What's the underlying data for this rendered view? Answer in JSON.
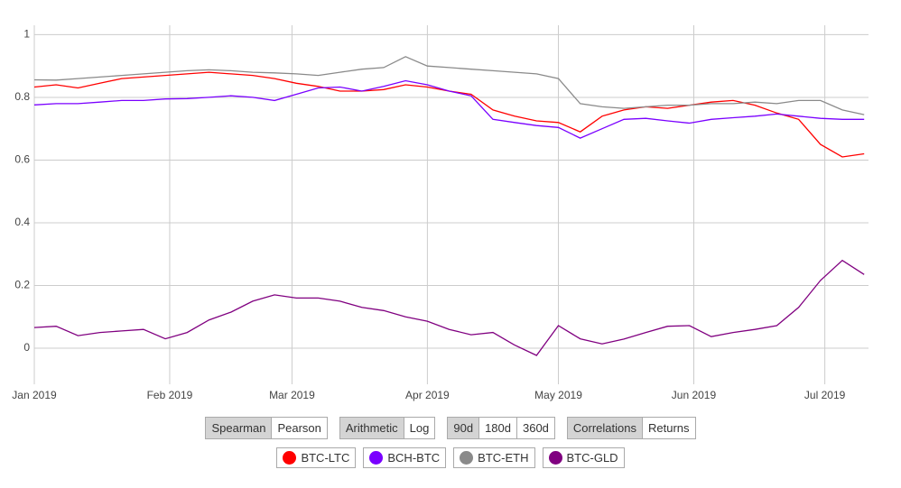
{
  "chart_data": {
    "type": "line",
    "x": [
      0,
      5,
      10,
      15,
      20,
      25,
      30,
      35,
      40,
      45,
      50,
      55,
      60,
      65,
      70,
      75,
      80,
      85,
      90,
      95,
      100,
      105,
      110,
      115,
      120,
      125,
      130,
      135,
      140,
      145,
      150,
      155,
      160,
      165,
      170,
      175,
      180,
      185,
      190
    ],
    "xlim": [
      0,
      191
    ],
    "xticks": [
      {
        "value": 0,
        "label": "Jan 2019"
      },
      {
        "value": 31,
        "label": "Feb 2019"
      },
      {
        "value": 59,
        "label": "Mar 2019"
      },
      {
        "value": 90,
        "label": "Apr 2019"
      },
      {
        "value": 120,
        "label": "May 2019"
      },
      {
        "value": 151,
        "label": "Jun 2019"
      },
      {
        "value": 181,
        "label": "Jul 2019"
      }
    ],
    "ylim": [
      -0.115,
      1.03
    ],
    "yticks": [
      0,
      0.2,
      0.4,
      0.6,
      0.8,
      1
    ],
    "grid": true,
    "series": [
      {
        "name": "BTC-LTC",
        "color": "#ff0000",
        "values": [
          0.833,
          0.84,
          0.83,
          0.845,
          0.86,
          0.865,
          0.87,
          0.875,
          0.88,
          0.875,
          0.87,
          0.86,
          0.845,
          0.835,
          0.82,
          0.82,
          0.825,
          0.84,
          0.833,
          0.82,
          0.81,
          0.76,
          0.74,
          0.725,
          0.72,
          0.69,
          0.74,
          0.76,
          0.77,
          0.765,
          0.775,
          0.785,
          0.79,
          0.775,
          0.75,
          0.73,
          0.65,
          0.61,
          0.62
        ]
      },
      {
        "name": "BCH-BTC",
        "color": "#7a00ff",
        "values": [
          0.776,
          0.78,
          0.78,
          0.785,
          0.79,
          0.79,
          0.795,
          0.796,
          0.8,
          0.805,
          0.8,
          0.79,
          0.81,
          0.83,
          0.833,
          0.82,
          0.835,
          0.853,
          0.84,
          0.82,
          0.805,
          0.73,
          0.72,
          0.71,
          0.704,
          0.67,
          0.7,
          0.73,
          0.733,
          0.725,
          0.718,
          0.73,
          0.735,
          0.74,
          0.747,
          0.74,
          0.733,
          0.73,
          0.73
        ]
      },
      {
        "name": "BTC-ETH",
        "color": "#8a8a8a",
        "values": [
          0.856,
          0.855,
          0.86,
          0.865,
          0.87,
          0.875,
          0.88,
          0.885,
          0.888,
          0.885,
          0.88,
          0.878,
          0.875,
          0.87,
          0.88,
          0.89,
          0.895,
          0.93,
          0.9,
          0.895,
          0.89,
          0.885,
          0.88,
          0.875,
          0.86,
          0.78,
          0.77,
          0.765,
          0.77,
          0.775,
          0.775,
          0.78,
          0.78,
          0.785,
          0.78,
          0.79,
          0.79,
          0.76,
          0.745
        ]
      },
      {
        "name": "BTC-GLD",
        "color": "#800080",
        "values": [
          0.066,
          0.07,
          0.04,
          0.05,
          0.055,
          0.06,
          0.03,
          0.05,
          0.09,
          0.115,
          0.15,
          0.17,
          0.16,
          0.16,
          0.15,
          0.13,
          0.12,
          0.1,
          0.086,
          0.06,
          0.043,
          0.05,
          0.01,
          -0.023,
          0.072,
          0.03,
          0.014,
          0.029,
          0.05,
          0.07,
          0.072,
          0.037,
          0.05,
          0.06,
          0.072,
          0.13,
          0.216,
          0.28,
          0.235
        ]
      }
    ]
  },
  "controls": [
    [
      "Spearman",
      "Pearson"
    ],
    [
      "Arithmetic",
      "Log"
    ],
    [
      "90d",
      "180d",
      "360d"
    ],
    [
      "Correlations",
      "Returns"
    ]
  ]
}
